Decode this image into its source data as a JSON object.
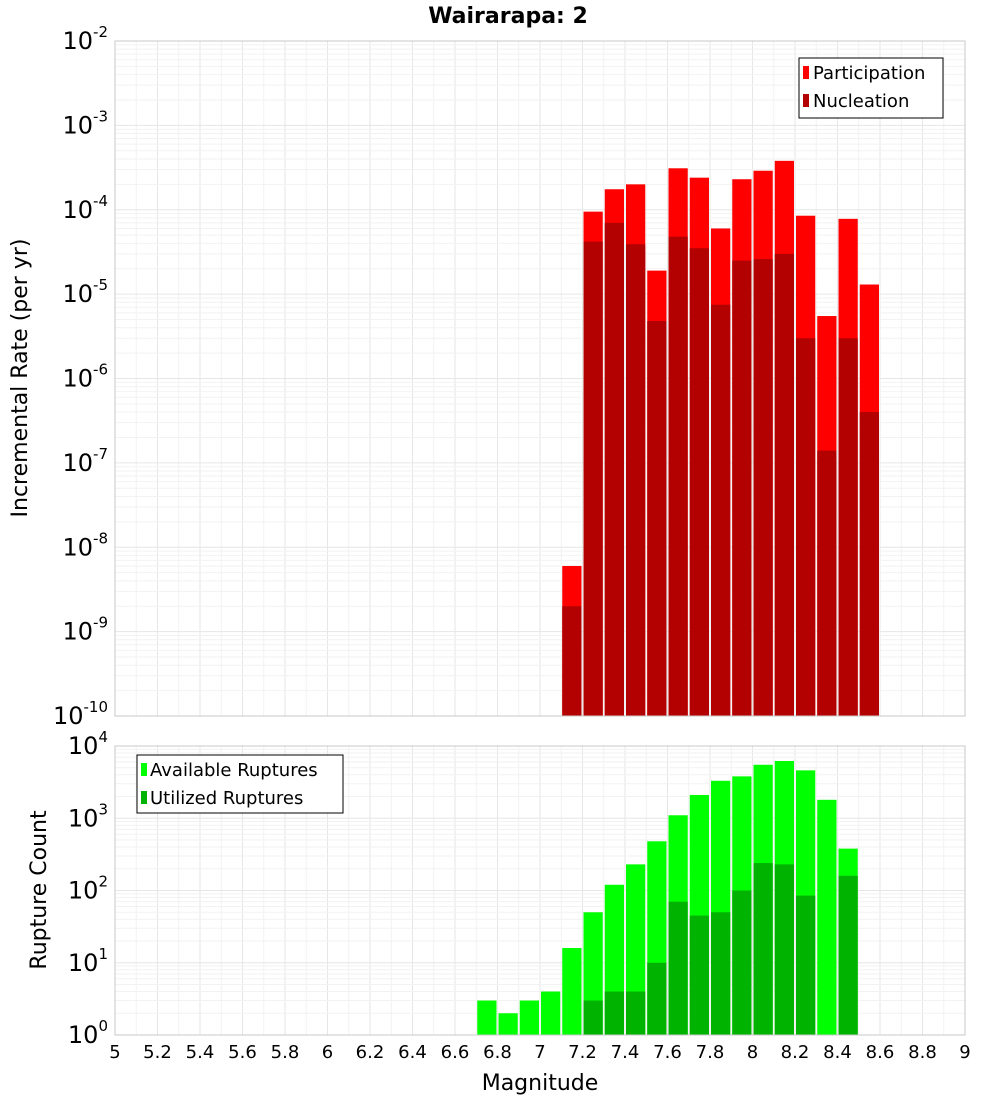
{
  "chart_data": [
    {
      "type": "bar",
      "title": "Wairarapa: 2",
      "xlabel": "",
      "ylabel": "Incremental Rate (per yr)",
      "yscale": "log",
      "xlim": [
        5,
        9
      ],
      "ylim": [
        1e-10,
        0.01
      ],
      "grid": true,
      "legend_position": "top-right",
      "bin_width": 0.1,
      "x": [
        7.15,
        7.25,
        7.35,
        7.45,
        7.55,
        7.65,
        7.75,
        7.85,
        7.95,
        8.05,
        8.15,
        8.25,
        8.35,
        8.45,
        8.55
      ],
      "series": [
        {
          "name": "Participation",
          "color": "#ff0000",
          "values": [
            6e-09,
            9.5e-05,
            0.000175,
            0.0002,
            1.9e-05,
            0.00031,
            0.00024,
            6e-05,
            0.00023,
            0.00029,
            0.00038,
            8.5e-05,
            5.5e-06,
            7.8e-05,
            1.3e-05
          ]
        },
        {
          "name": "Nucleation",
          "color": "#b30000",
          "values": [
            2e-09,
            4.2e-05,
            7e-05,
            3.9e-05,
            4.8e-06,
            4.8e-05,
            3.5e-05,
            7.5e-06,
            2.5e-05,
            2.6e-05,
            3e-05,
            3e-06,
            1.4e-07,
            3e-06,
            4e-07
          ]
        }
      ]
    },
    {
      "type": "bar",
      "title": "",
      "xlabel": "Magnitude",
      "ylabel": "Rupture Count",
      "yscale": "log",
      "xlim": [
        5,
        9
      ],
      "ylim": [
        1,
        10000
      ],
      "grid": true,
      "legend_position": "top-left",
      "bin_width": 0.1,
      "x_ticks": [
        "5",
        "5.2",
        "5.4",
        "5.6",
        "5.8",
        "6",
        "6.2",
        "6.4",
        "6.6",
        "6.8",
        "7",
        "7.2",
        "7.4",
        "7.6",
        "7.8",
        "8",
        "8.2",
        "8.4",
        "8.6",
        "8.8",
        "9"
      ],
      "series": [
        {
          "name": "Available Ruptures",
          "color": "#00ff00",
          "x": [
            6.75,
            6.85,
            6.95,
            7.05,
            7.15,
            7.25,
            7.35,
            7.45,
            7.55,
            7.65,
            7.75,
            7.85,
            7.95,
            8.05,
            8.15,
            8.25,
            8.35,
            8.45
          ],
          "values": [
            3,
            2,
            3,
            4,
            16,
            50,
            120,
            230,
            480,
            1100,
            2100,
            3300,
            3800,
            5500,
            6200,
            4600,
            1800,
            380
          ]
        },
        {
          "name": "Utilized Ruptures",
          "color": "#00b300",
          "x": [
            7.15,
            7.25,
            7.35,
            7.45,
            7.55,
            7.65,
            7.75,
            7.85,
            7.95,
            8.05,
            8.15,
            8.25,
            8.35,
            8.45,
            8.55
          ],
          "values": [
            1,
            3,
            4,
            4,
            10,
            70,
            45,
            50,
            100,
            240,
            230,
            85,
            1,
            160,
            1
          ]
        }
      ]
    }
  ]
}
